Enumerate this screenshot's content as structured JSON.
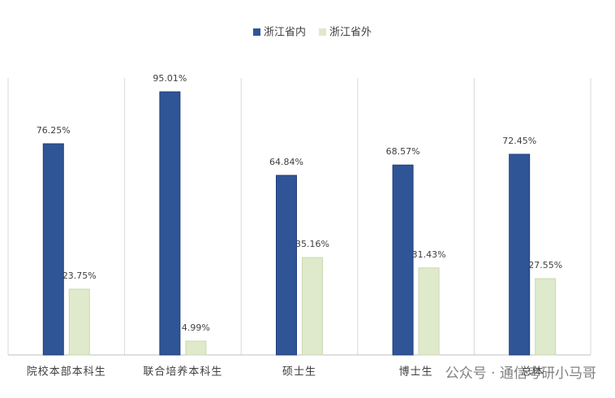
{
  "chart_data": {
    "type": "bar",
    "categories": [
      "院校本部本科生",
      "联合培养本科生",
      "硕士生",
      "博士生",
      "总体"
    ],
    "series": [
      {
        "name": "浙江省内",
        "color": "#2f5597",
        "values": [
          76.25,
          95.01,
          64.84,
          68.57,
          72.45
        ],
        "value_labels": [
          "76.25%",
          "95.01%",
          "64.84%",
          "68.57%",
          "72.45%"
        ]
      },
      {
        "name": "浙江省外",
        "color": "#dfe9cb",
        "values": [
          23.75,
          4.99,
          35.16,
          31.43,
          27.55
        ],
        "value_labels": [
          "23.75%",
          "4.99%",
          "35.16%",
          "31.43%",
          "27.55%"
        ]
      }
    ],
    "ylim": [
      0,
      100
    ],
    "legend": "top",
    "category_separators": true,
    "watermark": "公众号 · 通信考研小马哥"
  }
}
